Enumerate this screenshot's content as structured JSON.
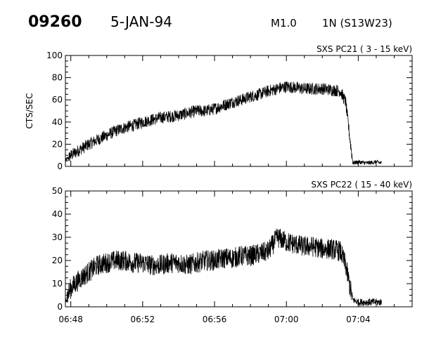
{
  "header": {
    "event_number": "09260",
    "date": "5-JAN-94",
    "flare_class": "M1.0",
    "position": "1N (S13W23)"
  },
  "chart_data": [
    {
      "type": "line",
      "title": "SXS PC21  (  3 - 15 keV)",
      "xlabel": "",
      "ylabel": "CTS/SEC",
      "xlim": [
        "06:47.7",
        "07:07.0"
      ],
      "ylim": [
        0,
        100
      ],
      "x_ticks": [
        "06:48",
        "06:52",
        "06:56",
        "07:00",
        "07:04"
      ],
      "y_ticks": [
        0,
        20,
        40,
        60,
        80,
        100
      ],
      "grid": false,
      "series": [
        {
          "x": [
            "06:47.7",
            "06:48.0",
            "06:48.5",
            "06:49.0",
            "06:49.5",
            "06:50.0",
            "06:50.5",
            "06:51.0",
            "06:51.5",
            "06:52.0",
            "06:52.5",
            "06:53.0",
            "06:53.5",
            "06:54.0",
            "06:54.5",
            "06:55.0",
            "06:55.5",
            "06:56.0",
            "06:56.5",
            "06:57.0",
            "06:57.5",
            "06:58.0",
            "06:58.5",
            "06:59.0",
            "06:59.5",
            "07:00.0",
            "07:00.5",
            "07:01.0",
            "07:01.5",
            "07:02.0",
            "07:02.5",
            "07:03.0",
            "07:03.3",
            "07:03.5",
            "07:03.7",
            "07:04.0",
            "07:04.5",
            "07:05.0",
            "07:05.3"
          ],
          "values": [
            5,
            10,
            15,
            20,
            24,
            28,
            32,
            35,
            37,
            40,
            42,
            44,
            45,
            46,
            48,
            50,
            50,
            52,
            55,
            58,
            60,
            63,
            65,
            68,
            70,
            72,
            71,
            70,
            70,
            70,
            69,
            68,
            58,
            30,
            3,
            4,
            3,
            4,
            3
          ]
        }
      ]
    },
    {
      "type": "line",
      "title": "SXS PC22  ( 15 - 40 keV)",
      "xlabel": "",
      "ylabel": "",
      "xlim": [
        "06:47.7",
        "07:07.0"
      ],
      "ylim": [
        0,
        50
      ],
      "x_ticks": [
        "06:48",
        "06:52",
        "06:56",
        "07:00",
        "07:04"
      ],
      "y_ticks": [
        0,
        10,
        20,
        30,
        40,
        50
      ],
      "grid": false,
      "series": [
        {
          "x": [
            "06:47.7",
            "06:48.0",
            "06:48.5",
            "06:49.0",
            "06:49.5",
            "06:50.0",
            "06:50.5",
            "06:51.0",
            "06:51.5",
            "06:52.0",
            "06:52.5",
            "06:53.0",
            "06:53.5",
            "06:54.0",
            "06:54.5",
            "06:55.0",
            "06:55.5",
            "06:56.0",
            "06:56.5",
            "06:57.0",
            "06:57.5",
            "06:58.0",
            "06:58.5",
            "06:59.0",
            "06:59.5",
            "07:00.0",
            "07:00.5",
            "07:01.0",
            "07:01.5",
            "07:02.0",
            "07:02.5",
            "07:03.0",
            "07:03.3",
            "07:03.5",
            "07:03.7",
            "07:04.0",
            "07:04.5",
            "07:05.0",
            "07:05.3"
          ],
          "values": [
            3,
            8,
            12,
            15,
            18,
            19,
            20,
            20,
            19,
            19,
            18,
            18,
            19,
            19,
            18,
            19,
            20,
            20,
            21,
            21,
            22,
            22,
            23,
            24,
            30,
            28,
            27,
            26,
            26,
            25,
            25,
            24,
            18,
            10,
            3,
            2,
            2,
            2,
            2
          ]
        }
      ]
    }
  ]
}
